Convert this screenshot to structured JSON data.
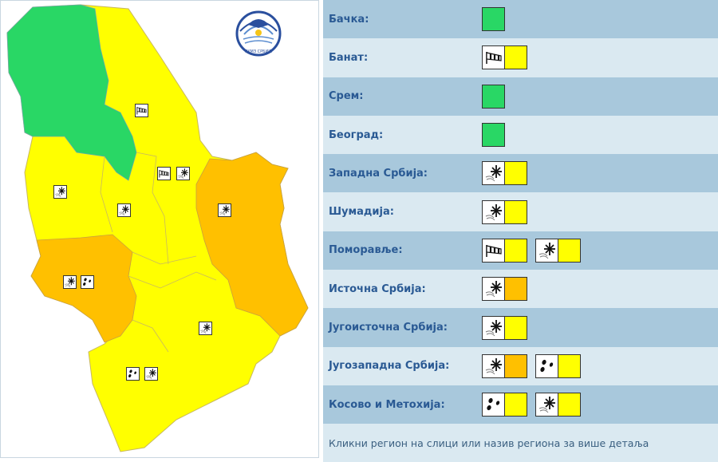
{
  "colors": {
    "green": "#29d765",
    "yellow": "#ffff00",
    "orange": "#ffc000",
    "border": "#c8b860"
  },
  "logo": {
    "text": "РХМЗ СРБИЈЕ"
  },
  "regions": [
    {
      "name": "Бачка:",
      "level": "green",
      "warnings": []
    },
    {
      "name": "Банат:",
      "level": "yellow",
      "warnings": [
        {
          "icon": "wind-icon",
          "level": "yellow"
        }
      ]
    },
    {
      "name": "Срем:",
      "level": "green",
      "warnings": []
    },
    {
      "name": "Београд:",
      "level": "green",
      "warnings": []
    },
    {
      "name": "Западна Србија:",
      "level": "yellow",
      "warnings": [
        {
          "icon": "snow-icon",
          "level": "yellow"
        }
      ]
    },
    {
      "name": "Шумадија:",
      "level": "yellow",
      "warnings": [
        {
          "icon": "snow-icon",
          "level": "yellow"
        }
      ]
    },
    {
      "name": "Поморавље:",
      "level": "yellow",
      "warnings": [
        {
          "icon": "wind-icon",
          "level": "yellow"
        },
        {
          "icon": "snow-icon",
          "level": "yellow"
        }
      ]
    },
    {
      "name": "Источна Србија:",
      "level": "orange",
      "warnings": [
        {
          "icon": "snow-icon",
          "level": "orange"
        }
      ]
    },
    {
      "name": "Југоисточна Србија:",
      "level": "yellow",
      "warnings": [
        {
          "icon": "snow-icon",
          "level": "yellow"
        }
      ]
    },
    {
      "name": "Југозападна Србија:",
      "level": "orange",
      "warnings": [
        {
          "icon": "snow-icon",
          "level": "orange"
        },
        {
          "icon": "rain-icon",
          "level": "yellow"
        }
      ]
    },
    {
      "name": "Косово и Метохија:",
      "level": "yellow",
      "warnings": [
        {
          "icon": "rain-icon",
          "level": "yellow"
        },
        {
          "icon": "snow-icon",
          "level": "yellow"
        }
      ]
    }
  ],
  "footer": "Кликни регион на слици или назив региона за више детаља"
}
